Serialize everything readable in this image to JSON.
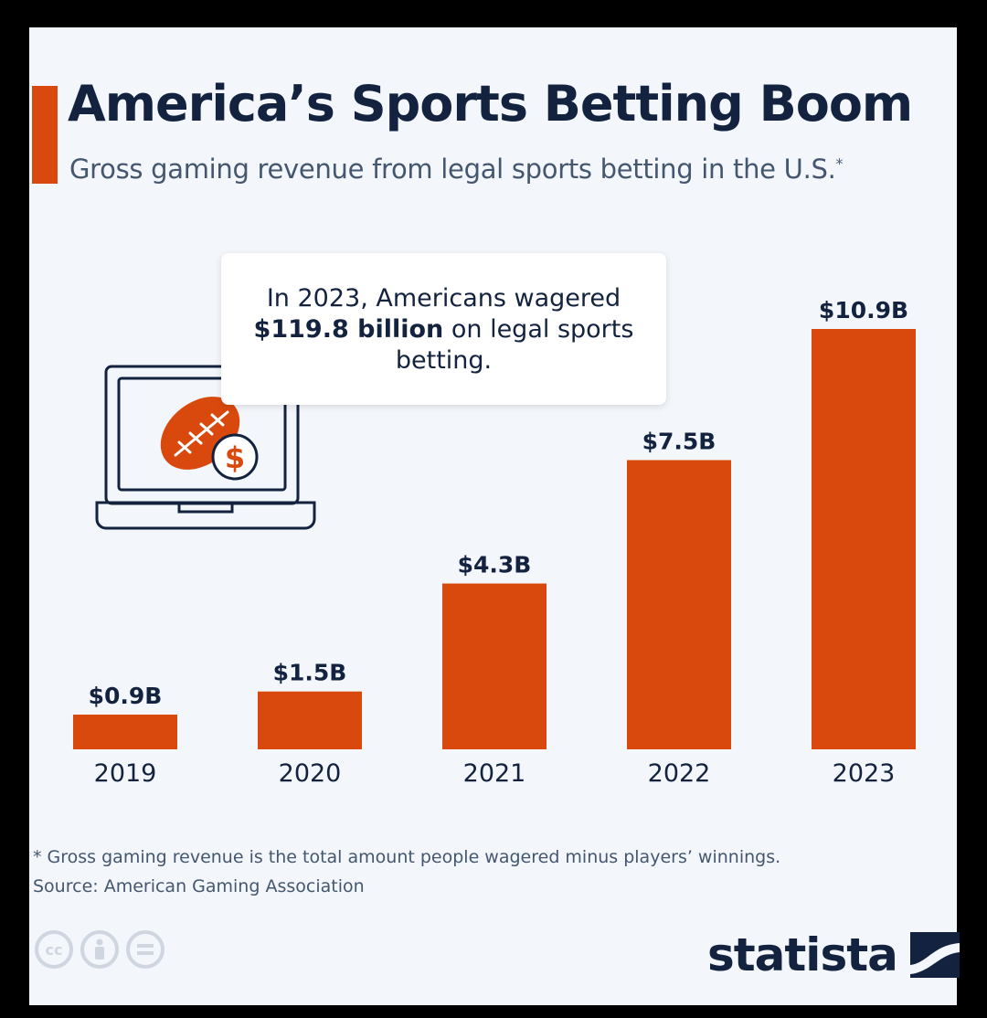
{
  "header": {
    "title": "America’s Sports Betting Boom",
    "subtitle": "Gross gaming revenue from legal sports betting in the U.S.",
    "subtitle_mark": "*"
  },
  "callout": {
    "line_before": "In 2023, Americans wagered",
    "highlight": "$119.8 billion",
    "line_after": "on legal sports betting."
  },
  "chart_data": {
    "type": "bar",
    "categories": [
      "2019",
      "2020",
      "2021",
      "2022",
      "2023"
    ],
    "values": [
      0.9,
      1.5,
      4.3,
      7.5,
      10.9
    ],
    "data_labels": [
      "$0.9B",
      "$1.5B",
      "$4.3B",
      "$7.5B",
      "$10.9B"
    ],
    "unit": "billion USD",
    "title": "America’s Sports Betting Boom",
    "subtitle": "Gross gaming revenue from legal sports betting in the U.S.",
    "xlabel": "",
    "ylabel": "",
    "ylim": [
      0,
      10.9
    ],
    "grid": false,
    "bar_color": "#d9490d"
  },
  "footer": {
    "footnote": "* Gross gaming revenue is the total amount people wagered minus players’ winnings.",
    "source": "Source: American Gaming Association",
    "brand": "statista"
  },
  "colors": {
    "accent": "#d9490d",
    "navy": "#13233f",
    "background": "#f3f6fb"
  },
  "icons": [
    "laptop-icon",
    "football-icon",
    "dollar-coin-icon",
    "cc-icon",
    "attribution-icon",
    "no-derivatives-icon",
    "statista-logo-icon"
  ]
}
